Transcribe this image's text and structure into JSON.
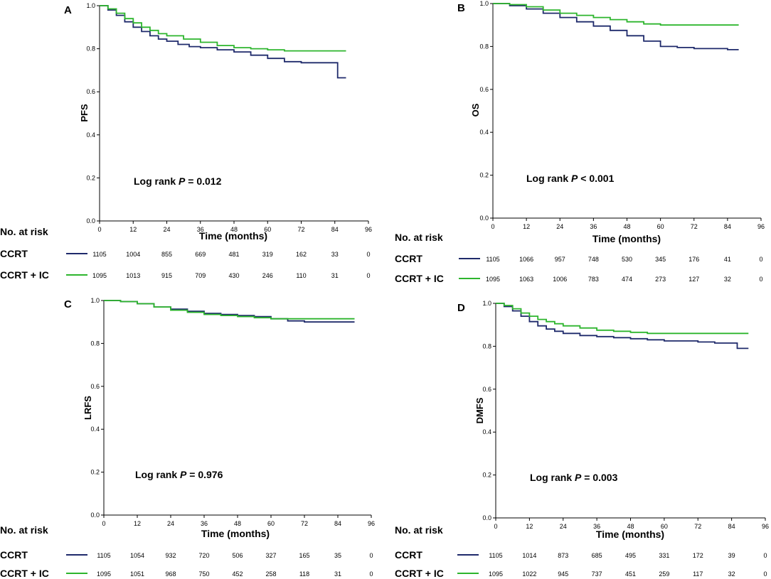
{
  "colors": {
    "ccrt": "#1f2a6b",
    "ccrt_ic": "#2db52d",
    "axis": "#000000"
  },
  "risk_header": "No. at risk",
  "xlabel": "Time (months)",
  "chart_data": [
    {
      "type": "line",
      "panel": "A",
      "ylabel": "PFS",
      "xlabel": "Time (months)",
      "xlim": [
        0,
        96
      ],
      "ylim": [
        0,
        1.0
      ],
      "xticks": [
        "0",
        "12",
        "24",
        "36",
        "48",
        "60",
        "72",
        "84",
        "96"
      ],
      "yticks": [
        "0.0",
        "0.2",
        "0.4",
        "0.6",
        "0.8",
        "1.0"
      ],
      "logrank": {
        "prefix": "Log rank ",
        "p": "P",
        "value": " = 0.012"
      },
      "series": [
        {
          "name": "CCRT",
          "color": "#1f2a6b",
          "x": [
            0,
            3,
            6,
            9,
            12,
            15,
            18,
            21,
            24,
            28,
            32,
            36,
            42,
            48,
            54,
            60,
            66,
            72,
            78,
            84,
            85,
            85,
            88
          ],
          "y": [
            1.0,
            0.98,
            0.955,
            0.925,
            0.9,
            0.88,
            0.86,
            0.845,
            0.835,
            0.82,
            0.81,
            0.805,
            0.795,
            0.785,
            0.77,
            0.755,
            0.74,
            0.735,
            0.735,
            0.735,
            0.735,
            0.665,
            0.665
          ]
        },
        {
          "name": "CCRT + IC",
          "color": "#2db52d",
          "x": [
            0,
            3,
            6,
            9,
            12,
            15,
            18,
            21,
            24,
            30,
            36,
            42,
            48,
            54,
            60,
            66,
            72,
            78,
            84,
            88
          ],
          "y": [
            1.0,
            0.985,
            0.965,
            0.94,
            0.92,
            0.9,
            0.885,
            0.87,
            0.86,
            0.845,
            0.83,
            0.815,
            0.805,
            0.8,
            0.795,
            0.79,
            0.79,
            0.79,
            0.79,
            0.79
          ]
        }
      ],
      "at_risk": [
        {
          "label": "CCRT",
          "values": [
            "1105",
            "1004",
            "855",
            "669",
            "481",
            "319",
            "162",
            "33",
            "0"
          ]
        },
        {
          "label": "CCRT + IC",
          "values": [
            "1095",
            "1013",
            "915",
            "709",
            "430",
            "246",
            "110",
            "31",
            "0"
          ]
        }
      ]
    },
    {
      "type": "line",
      "panel": "B",
      "ylabel": "OS",
      "xlabel": "Time (months)",
      "xlim": [
        0,
        96
      ],
      "ylim": [
        0,
        1.0
      ],
      "xticks": [
        "0",
        "12",
        "24",
        "36",
        "48",
        "60",
        "72",
        "84",
        "96"
      ],
      "yticks": [
        "0.0",
        "0.2",
        "0.4",
        "0.6",
        "0.8",
        "1.0"
      ],
      "logrank": {
        "prefix": "Log rank ",
        "p": "P",
        "value": " < 0.001"
      },
      "series": [
        {
          "name": "CCRT",
          "color": "#1f2a6b",
          "x": [
            0,
            6,
            12,
            18,
            24,
            30,
            36,
            42,
            48,
            54,
            60,
            66,
            72,
            78,
            84,
            88
          ],
          "y": [
            1.0,
            0.99,
            0.975,
            0.955,
            0.935,
            0.915,
            0.895,
            0.875,
            0.85,
            0.825,
            0.8,
            0.795,
            0.79,
            0.79,
            0.785,
            0.785
          ]
        },
        {
          "name": "CCRT + IC",
          "color": "#2db52d",
          "x": [
            0,
            6,
            12,
            18,
            24,
            30,
            36,
            42,
            48,
            54,
            60,
            66,
            72,
            78,
            84,
            88
          ],
          "y": [
            1.0,
            0.995,
            0.985,
            0.97,
            0.955,
            0.945,
            0.935,
            0.925,
            0.915,
            0.905,
            0.9,
            0.9,
            0.9,
            0.9,
            0.9,
            0.9
          ]
        }
      ],
      "at_risk": [
        {
          "label": "CCRT",
          "values": [
            "1105",
            "1066",
            "957",
            "748",
            "530",
            "345",
            "176",
            "41",
            "0"
          ]
        },
        {
          "label": "CCRT + IC",
          "values": [
            "1095",
            "1063",
            "1006",
            "783",
            "474",
            "273",
            "127",
            "32",
            "0"
          ]
        }
      ]
    },
    {
      "type": "line",
      "panel": "C",
      "ylabel": "LRFS",
      "xlabel": "Time (months)",
      "xlim": [
        0,
        96
      ],
      "ylim": [
        0,
        1.0
      ],
      "xticks": [
        "0",
        "12",
        "24",
        "36",
        "48",
        "60",
        "72",
        "84",
        "96"
      ],
      "yticks": [
        "0.0",
        "0.2",
        "0.4",
        "0.6",
        "0.8",
        "1.0"
      ],
      "logrank": {
        "prefix": "Log rank ",
        "p": "P",
        "value": " = 0.976"
      },
      "series": [
        {
          "name": "CCRT",
          "color": "#1f2a6b",
          "x": [
            0,
            6,
            12,
            18,
            24,
            30,
            36,
            42,
            48,
            54,
            60,
            66,
            72,
            78,
            84,
            90
          ],
          "y": [
            1.0,
            0.995,
            0.985,
            0.97,
            0.96,
            0.95,
            0.94,
            0.935,
            0.93,
            0.925,
            0.915,
            0.905,
            0.9,
            0.9,
            0.9,
            0.9
          ]
        },
        {
          "name": "CCRT + IC",
          "color": "#2db52d",
          "x": [
            0,
            6,
            12,
            18,
            24,
            30,
            36,
            42,
            48,
            54,
            60,
            66,
            72,
            78,
            84,
            90
          ],
          "y": [
            1.0,
            0.995,
            0.985,
            0.97,
            0.955,
            0.945,
            0.935,
            0.93,
            0.925,
            0.92,
            0.915,
            0.915,
            0.915,
            0.915,
            0.915,
            0.915
          ]
        }
      ],
      "at_risk": [
        {
          "label": "CCRT",
          "values": [
            "1105",
            "1054",
            "932",
            "720",
            "506",
            "327",
            "165",
            "35",
            "0"
          ]
        },
        {
          "label": "CCRT + IC",
          "values": [
            "1095",
            "1051",
            "968",
            "750",
            "452",
            "258",
            "118",
            "31",
            "0"
          ]
        }
      ]
    },
    {
      "type": "line",
      "panel": "D",
      "ylabel": "DMFS",
      "xlabel": "Time (months)",
      "xlim": [
        0,
        96
      ],
      "ylim": [
        0,
        1.0
      ],
      "xticks": [
        "0",
        "12",
        "24",
        "36",
        "48",
        "60",
        "72",
        "84",
        "96"
      ],
      "yticks": [
        "0.0",
        "0.2",
        "0.4",
        "0.6",
        "0.8",
        "1.0"
      ],
      "logrank": {
        "prefix": "Log rank ",
        "p": "P",
        "value": " = 0.003"
      },
      "series": [
        {
          "name": "CCRT",
          "color": "#1f2a6b",
          "x": [
            0,
            3,
            6,
            9,
            12,
            15,
            18,
            21,
            24,
            30,
            36,
            42,
            48,
            54,
            60,
            66,
            72,
            78,
            84,
            86,
            86,
            90
          ],
          "y": [
            1.0,
            0.985,
            0.965,
            0.94,
            0.915,
            0.895,
            0.88,
            0.87,
            0.86,
            0.85,
            0.845,
            0.84,
            0.835,
            0.83,
            0.825,
            0.825,
            0.82,
            0.815,
            0.815,
            0.815,
            0.79,
            0.79
          ]
        },
        {
          "name": "CCRT + IC",
          "color": "#2db52d",
          "x": [
            0,
            3,
            6,
            9,
            12,
            15,
            18,
            21,
            24,
            30,
            36,
            42,
            48,
            54,
            60,
            66,
            72,
            78,
            84,
            90
          ],
          "y": [
            1.0,
            0.99,
            0.975,
            0.955,
            0.94,
            0.925,
            0.915,
            0.905,
            0.895,
            0.885,
            0.875,
            0.87,
            0.865,
            0.86,
            0.86,
            0.86,
            0.86,
            0.86,
            0.86,
            0.86
          ]
        }
      ],
      "at_risk": [
        {
          "label": "CCRT",
          "values": [
            "1105",
            "1014",
            "873",
            "685",
            "495",
            "331",
            "172",
            "39",
            "0"
          ]
        },
        {
          "label": "CCRT + IC",
          "values": [
            "1095",
            "1022",
            "945",
            "737",
            "451",
            "259",
            "117",
            "32",
            "0"
          ]
        }
      ]
    }
  ]
}
